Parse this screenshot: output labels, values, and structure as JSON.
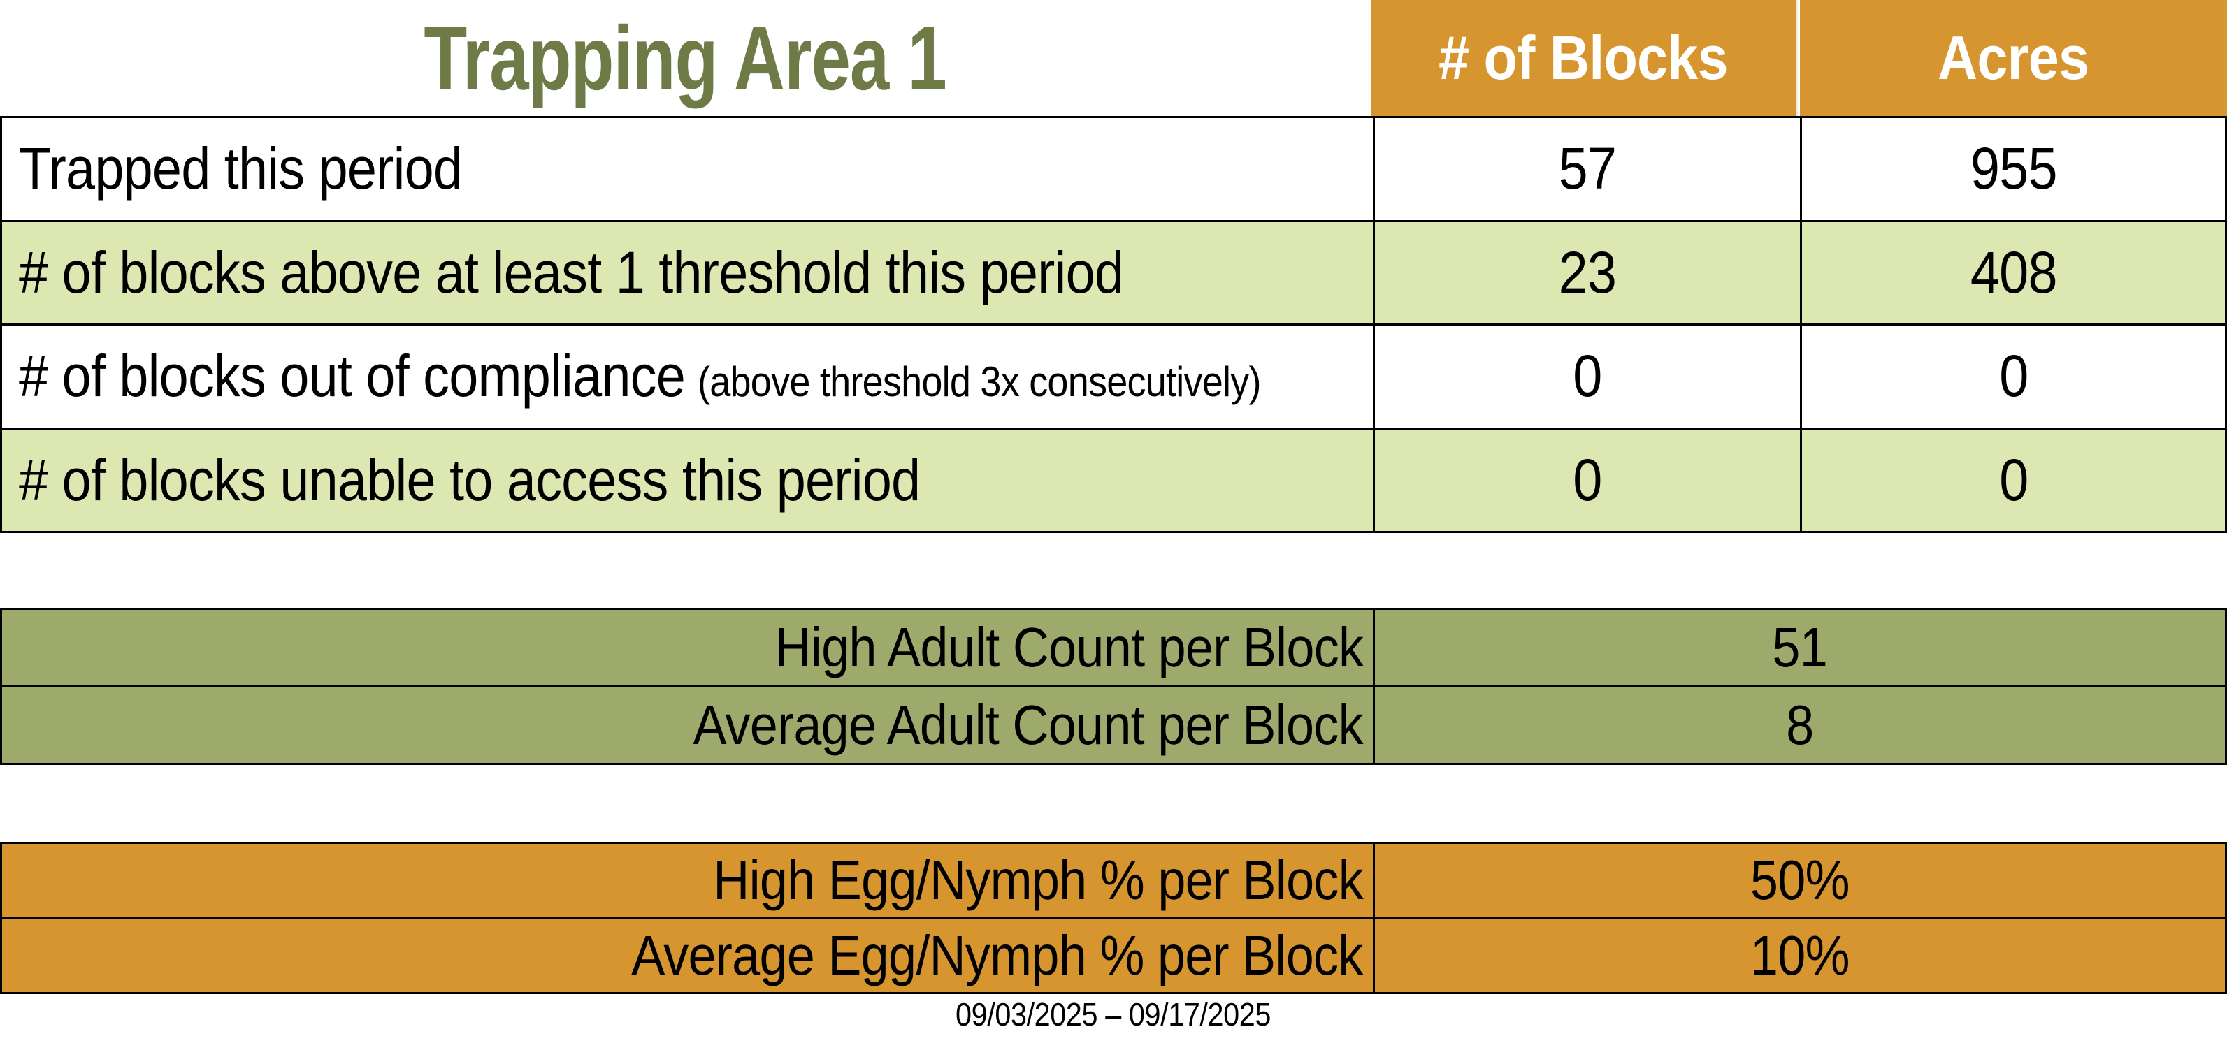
{
  "title": "Trapping Area 1",
  "colors": {
    "title_green": "#6E7B46",
    "header_orange": "#D6952F",
    "row_light_green": "#DCE7B2",
    "adult_olive": "#9EAA6B",
    "egg_orange": "#D6952F",
    "header_text": "#ffffff",
    "body_text": "#000000",
    "border": "#000000"
  },
  "top_table": {
    "col_headers": {
      "blocks": "# of Blocks",
      "acres": "Acres"
    },
    "rows": [
      {
        "label": "Trapped this period",
        "note": "",
        "blocks": "57",
        "acres": "955"
      },
      {
        "label": "# of blocks above at least 1 threshold this period",
        "note": "",
        "blocks": "23",
        "acres": "408"
      },
      {
        "label": "# of blocks out of compliance",
        "note": "(above threshold 3x consecutively)",
        "blocks": "0",
        "acres": "0"
      },
      {
        "label": "# of blocks unable to access this period",
        "note": "",
        "blocks": "0",
        "acres": "0"
      }
    ]
  },
  "adult_table": {
    "rows": [
      {
        "label": "High Adult Count per Block",
        "value": "51"
      },
      {
        "label": "Average Adult Count per Block",
        "value": "8"
      }
    ]
  },
  "egg_table": {
    "rows": [
      {
        "label": "High Egg/Nymph % per Block",
        "value": "50%"
      },
      {
        "label": "Average Egg/Nymph % per Block",
        "value": "10%"
      }
    ]
  },
  "footer": {
    "date_range": "09/03/2025 – 09/17/2025"
  }
}
